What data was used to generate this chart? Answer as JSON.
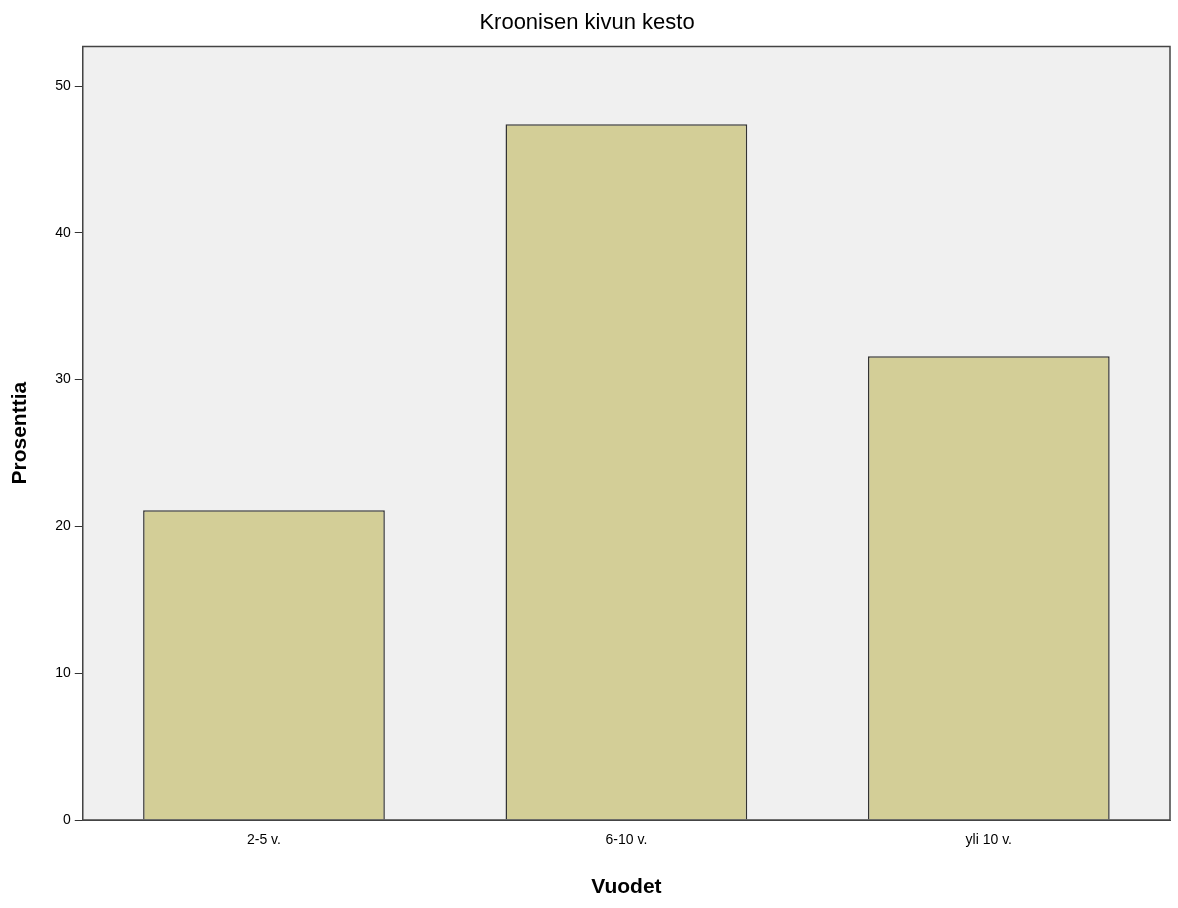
{
  "chart_data": {
    "type": "bar",
    "title": "Kroonisen kivun kesto",
    "xlabel": "Vuodet",
    "ylabel": "Prosenttia",
    "categories": [
      "2-5 v.",
      "6-10 v.",
      "yli 10 v."
    ],
    "values": [
      21.1,
      47.4,
      31.6
    ],
    "color": "#d3ce97",
    "ylim": [
      0,
      52.7
    ],
    "yticks": [
      0,
      10,
      20,
      30,
      40,
      50
    ],
    "grid": false
  }
}
